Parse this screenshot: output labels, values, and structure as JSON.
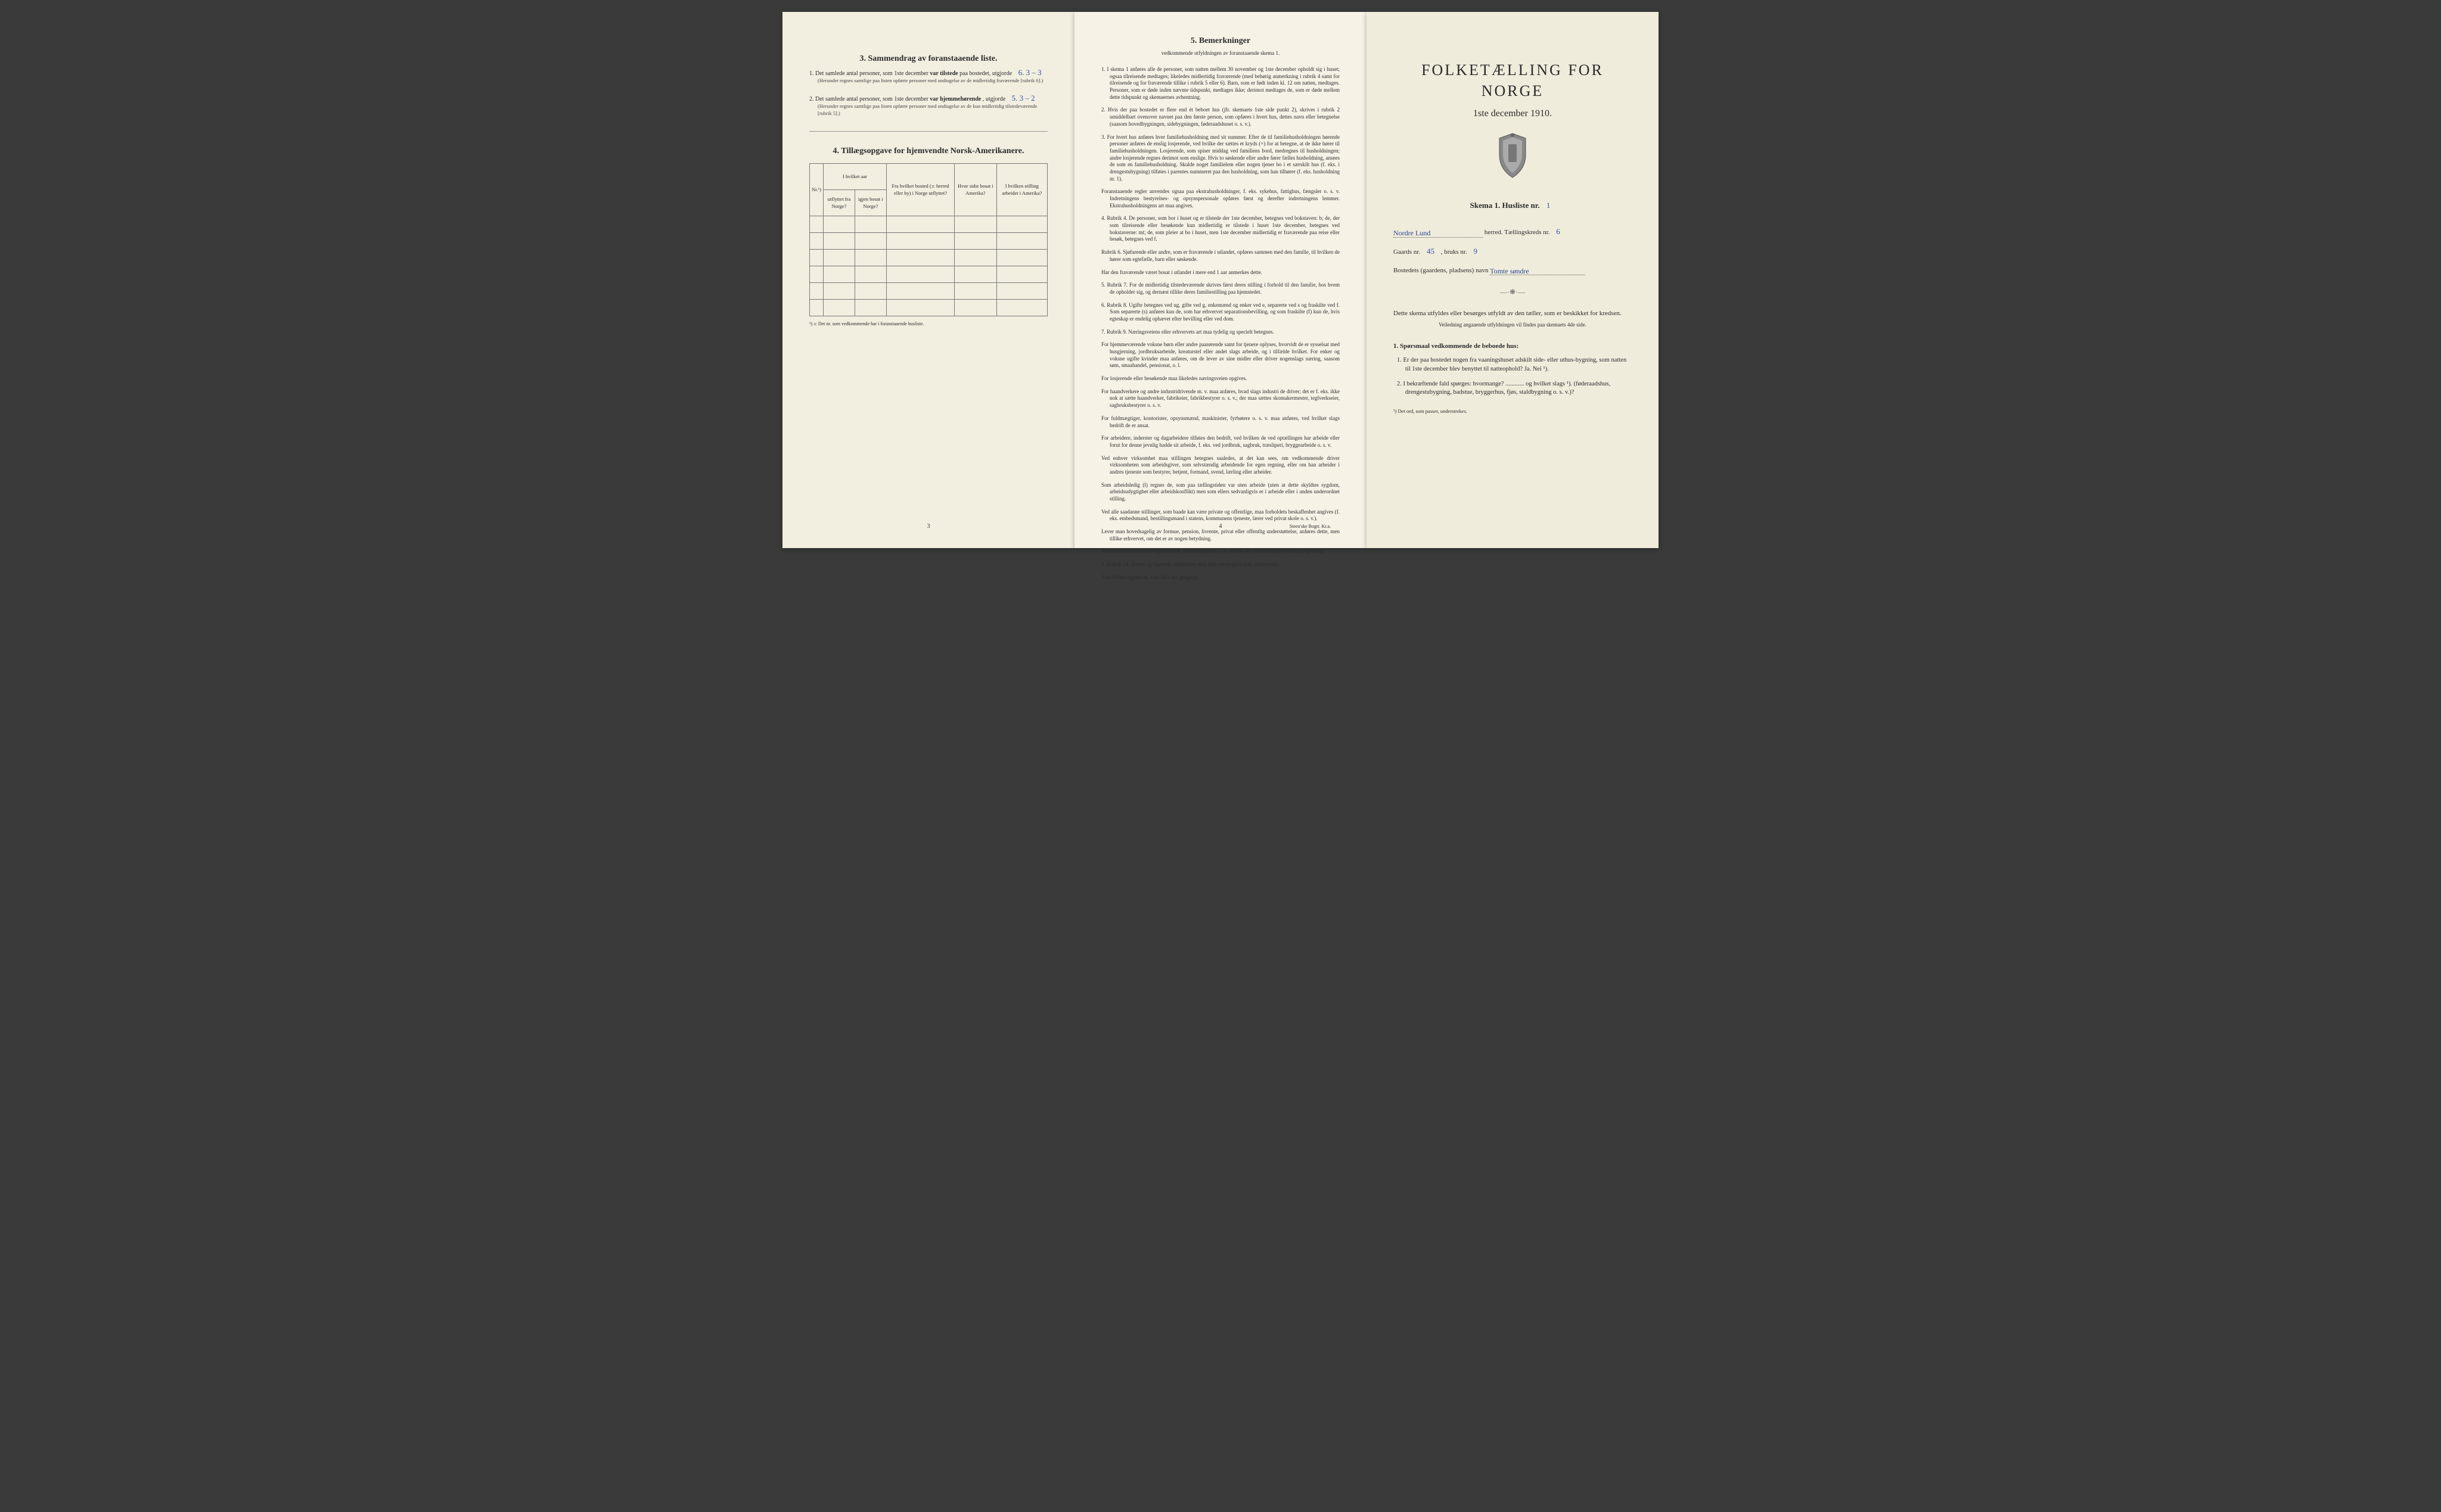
{
  "page_left": {
    "section3": {
      "num": "3.",
      "title": "Sammendrag av foranstaaende liste.",
      "item1_lead": "1.  Det samlede antal personer, som 1ste december",
      "item1_bold": "var tilstede",
      "item1_tail": "paa bostedet, utgjorde",
      "item1_hand": "6.   3 – 3",
      "item1_fine": "(Herunder regnes samtlige paa listen opførte personer med undtagelse av de midlertidig fraværende [rubrik 6].)",
      "item2_lead": "2.  Det samlede antal personer, som 1ste december",
      "item2_bold": "var hjemmehørende",
      "item2_tail": ", utgjorde",
      "item2_hand": "5.   3 – 2",
      "item2_fine": "(Herunder regnes samtlige paa listen opførte personer med undtagelse av de kun midlertidig tilstedeværende [rubrik 5].)"
    },
    "section4": {
      "num": "4.",
      "title": "Tillægsopgave for hjemvendte Norsk-Amerikanere.",
      "cols": {
        "c1": "Nr.¹)",
        "c2": "I hvilket aar utflyttet fra Norge?",
        "c3": "igjen bosat i Norge?",
        "c4": "Fra hvilket bosted (ɔ: herred eller by) i Norge utflyttet?",
        "c5": "Hvor sidst bosat i Amerika?",
        "c6": "I hvilken stilling arbeidet i Amerika?"
      },
      "footnote": "¹) ɔ: Det nr. som vedkommende har i foranstaaende husliste."
    },
    "pagenum": "3"
  },
  "page_mid": {
    "num": "5.",
    "title": "Bemerkninger",
    "sub": "vedkommende utfyldningen av foranstaaende skema 1.",
    "items": [
      "1.  I skema 1 anføres alle de personer, som natten mellem 30 november og 1ste december opholdt sig i huset; ogsaa tilreisende medtages; likeledes midlertidig fraværende (med behørig anmerkning i rubrik 4 samt for tilreisende og for fraværende tillike i rubrik 5 eller 6). Barn, som er født inden kl. 12 om natten, medtages. Personer, som er døde inden nævnte tidspunkt, medtages ikke; derimot medtages de, som er døde mellem dette tidspunkt og skemaernes avhentning.",
      "2.  Hvis der paa bostedet er flere end ét beboet hus (jfr. skemaets 1ste side punkt 2), skrives i rubrik 2 umiddelbart ovenover navnet paa den første person, som opføres i hvert hus, dettes navn eller betegnelse (saasom hovedbygningen, sidebygningen, føderaadshuset o. s. v.).",
      "3.  For hvert hus anføres hver familiehusholdning med sit nummer. Efter de til familiehusholdningen hørende personer anføres de enslig losjerende, ved hvilke der sættes et kryds (×) for at betegne, at de ikke hører til familiehusholdningen. Losjerende, som spiser middag ved familiens bord, medregnes til husholdningen; andre losjerende regnes derimot som enslige. Hvis to søskende eller andre fører fælles husholdning, ansees de som en familiehusholdning. Skulde noget familielem eller nogen tjener bo i et særskilt hus (f. eks. i drengestubygning) tilføies i parentes nummeret paa den husholdning, som han tilhører (f. eks. husholdning nr. 1).",
      "Foranstaaende regler anvendes ogsaa paa ekstrahusholdninger, f. eks. sykehus, fattighus, fængsler o. s. v. Indretningens bestyrelses- og opsynspersonale opføres først og derefter indretningens lemmer. Ekstrahusholdningens art maa angives.",
      "4.  Rubrik 4. De personer, som bor i huset og er tilstede der 1ste december, betegnes ved bokstaven: b; de, der som tilreisende eller besøkende kun midlertidig er tilstede i huset 1ste december, betegnes ved bokstaverne: mt; de, som pleier at bo i huset, men 1ste december midlertidig er fraværende paa reise eller besøk, betegnes ved f.",
      "Rubrik 6. Sjøfarende eller andre, som er fraværende i utlandet, opføres sammen med den familie, til hvilken de hører som egtefælle, barn eller søskende.",
      "Har den fraværende været bosat i utlandet i mere end 1 aar anmerkes dette.",
      "5.  Rubrik 7. For de midlertidig tilstedeværende skrives først deres stilling i forhold til den familie, hos hvem de opholder sig, og dernæst tillike deres familiestilling paa hjemstedet.",
      "6.  Rubrik 8. Ugifte betegnes ved ug, gifte ved g, enkemænd og enker ved e, separerte ved s og fraskilte ved f. Som separerte (s) anføres kun de, som har erhvervet separationsbevilling, og som fraskilte (f) kun de, hvis egteskap er endelig ophævet efter bevilling eller ved dom.",
      "7.  Rubrik 9. Næringsveiens eller erhvervets art maa tydelig og specielt betegnes.",
      "For hjemmeværende voksne børn eller andre paarørende samt for tjenere oplyses, hvorvidt de er sysselsat med husgjerning, jordbruksarbeide, kreaturstel eller andet slags arbeide, og i tilfælde hvilket. For enker og voksne ugifte kvinder maa anføres, om de lever av sine midler eller driver nogenslags næring, saasom søm, smaahandel, pensionat, o. l.",
      "For losjerende eller besøkende maa likeledes næringsveien opgives.",
      "For haandverkere og andre industridrivende m. v. maa anføres, hvad slags industri de driver; det er f. eks. ikke nok at sætte haandverker, fabrikeier, fabrikbestyrer o. s. v.; der maa sættes skomakermester, teglverkseier, sagbruksbestyrer o. s. v.",
      "For fuldmægtiger, kontorister, opsynsmænd, maskinister, fyrbøtere o. s. v. maa anføres, ved hvilket slags bedrift de er ansat.",
      "For arbeidere, inderster og dagarbeidere tilføies den bedrift, ved hvilken de ved optællingen har arbeide eller forut for denne jevnlig hadde sit arbeide, f. eks. ved jordbruk, sagbruk, træsliperi, bryggearbeide o. s. v.",
      "Ved enhver virksomhet maa stillingen betegnes saaledes, at det kan sees, om vedkommende driver virksomheten som arbeidsgiver, som selvstændig arbeidende for egen regning, eller om han arbeider i andres tjeneste som bestyrer, betjent, formand, svend, lærling eller arbeider.",
      "Som arbeidsledig (l) regnes de, som paa tællingstiden var uten arbeide (uten at dette skyldtes sygdom, arbeidsudygtighet eller arbeidskonflikt) men som ellers sedvanligvis er i arbeide eller i anden underordnet stilling.",
      "Ved alle saadanne stillinger, som baade kan være private og offentlige, maa forholdets beskaffenhet angives (f. eks. embedsmand, bestillingsmand i statens, kommunens tjeneste, lærer ved privat skole o. s. v.).",
      "Lever man hovedsagelig av formue, pension, livrente, privat eller offentlig understøttelse, anføres dette, men tillike erhvervet, om det er av nogen betydning.",
      "Ved forhenværende næringsdrivende, embedsmænd o. s. v. sættes «fv» foran tidligere livsstillings navn.",
      "8.  Rubrik 14. Sinker og lignende aandssløve maa ikke medregnes som aandssvake.",
      "Som blinde regnes de, som ikke har gangsyn."
    ],
    "pagenum": "4",
    "printer": "Steen'ske Bogtr.  Kr.a."
  },
  "page_right": {
    "title": "FOLKETÆLLING FOR NORGE",
    "date": "1ste december 1910.",
    "skema_label": "Skema 1.   Husliste nr.",
    "skema_val": "1",
    "herred_val": "Nordre Lund",
    "herred_tail": "herred.  Tællingskreds nr.",
    "kreds_val": "6",
    "gaard_label": "Gaards nr.",
    "gaard_val": "45",
    "bruk_label": ", bruks nr.",
    "bruk_val": "9",
    "bosted_label": "Bostedets (gaardens, pladsens) navn",
    "bosted_val": "Tomte søndre",
    "body1": "Dette skema utfyldes eller besørges utfyldt av den tæller, som er beskikket for kredsen.",
    "instr": "Veiledning angaaende utfyldningen vil findes paa skemaets 4de side.",
    "q_head": "1.  Spørsmaal vedkommende de beboede hus:",
    "q1": "1.  Er der paa bostedet nogen fra vaaningshuset adskilt side- eller uthus-bygning, som natten til 1ste december blev benyttet til natteophold?    Ja.   Nei ¹).",
    "q2": "2.  I bekræftende fald spørges: hvormange? ............ og hvilket slags ¹). (føderaadshus, drengestubygning, badstue, bryggerhus, fjøs, staldbygning o. s. v.)?",
    "foot": "¹) Det ord, som passer, understrekes."
  },
  "colors": {
    "page_bg_1": "#f2eee0",
    "page_bg_2": "#f6f2e6",
    "page_bg_3": "#f0ecdc",
    "text": "#2a2a2a",
    "handwriting": "#3050a0",
    "border": "#777777"
  }
}
